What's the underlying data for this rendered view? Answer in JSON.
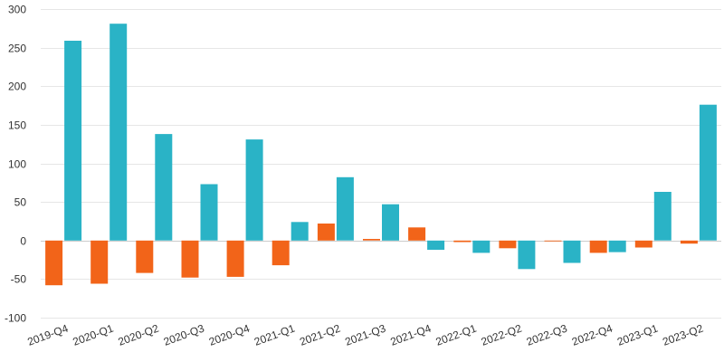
{
  "chart_data": {
    "type": "bar",
    "categories": [
      "2019-Q4",
      "2020-Q1",
      "2020-Q2",
      "2020-Q3",
      "2020-Q4",
      "2021-Q1",
      "2021-Q2",
      "2021-Q3",
      "2021-Q4",
      "2022-Q1",
      "2022-Q2",
      "2022-Q3",
      "2022-Q4",
      "2023-Q1",
      "2023-Q2"
    ],
    "series": [
      {
        "color": "#f26419",
        "values": [
          -58,
          -56,
          -42,
          -48,
          -47,
          -32,
          22,
          2,
          17,
          -2,
          -10,
          -1,
          -16,
          -9,
          -4
        ]
      },
      {
        "color": "#2ab3c6",
        "values": [
          259,
          281,
          138,
          73,
          131,
          24,
          82,
          47,
          -12,
          -16,
          -37,
          -29,
          -15,
          63,
          176
        ]
      }
    ],
    "title": "",
    "xlabel": "",
    "ylabel": "",
    "ylim": [
      -100,
      300
    ],
    "yticks": [
      -100,
      -50,
      0,
      50,
      100,
      150,
      200,
      250,
      300
    ],
    "grid": true,
    "legend": "none"
  }
}
